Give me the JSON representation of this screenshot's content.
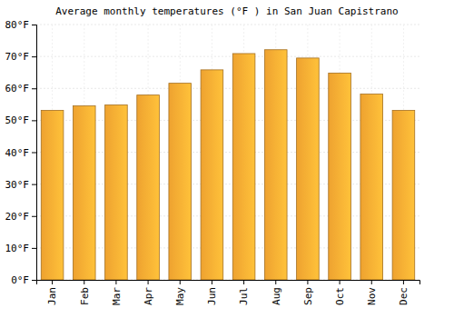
{
  "chart_data": {
    "type": "bar",
    "title": "Average monthly temperatures (°F ) in San Juan Capistrano",
    "categories": [
      "Jan",
      "Feb",
      "Mar",
      "Apr",
      "May",
      "Jun",
      "Jul",
      "Aug",
      "Sep",
      "Oct",
      "Nov",
      "Dec"
    ],
    "values": [
      53.1,
      54.5,
      54.8,
      57.9,
      61.6,
      65.8,
      70.9,
      72.1,
      69.5,
      64.8,
      58.2,
      53.1
    ],
    "color": "#fbab33",
    "ylim": [
      0,
      80
    ],
    "yticks": [
      {
        "value": 0,
        "label": "0°F"
      },
      {
        "value": 10,
        "label": "10°F"
      },
      {
        "value": 20,
        "label": "20°F"
      },
      {
        "value": 30,
        "label": "30°F"
      },
      {
        "value": 40,
        "label": "40°F"
      },
      {
        "value": 50,
        "label": "50°F"
      },
      {
        "value": 60,
        "label": "60°F"
      },
      {
        "value": 70,
        "label": "70°F"
      },
      {
        "value": 80,
        "label": "80°F"
      }
    ],
    "grid": true
  }
}
